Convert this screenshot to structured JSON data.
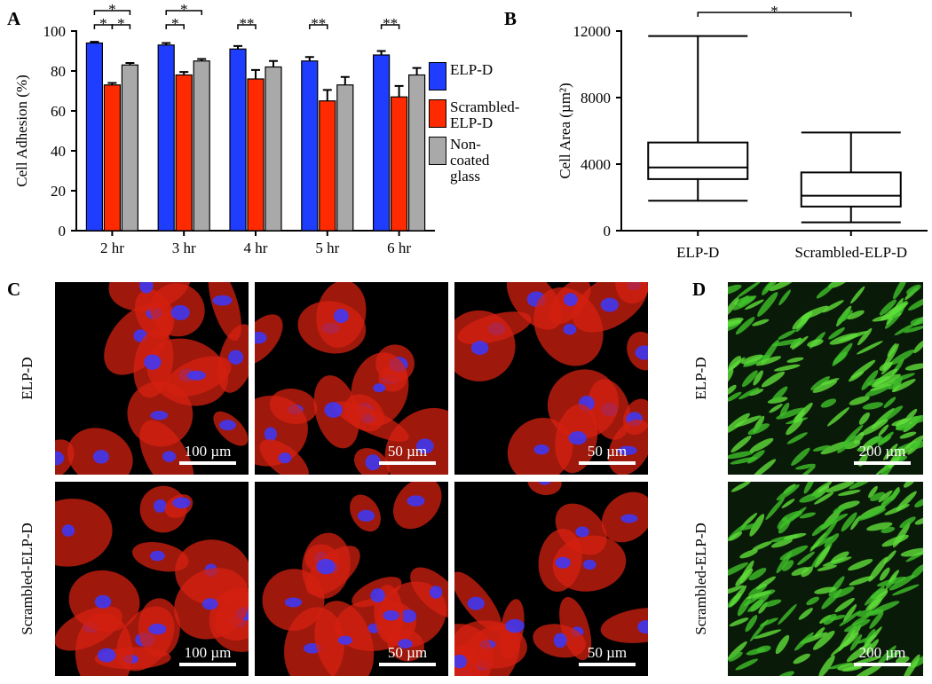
{
  "chart_data": [
    {
      "type": "bar",
      "panel_label": "A",
      "ylabel": "Cell Adhesion (%)",
      "categories": [
        "2 hr",
        "3 hr",
        "4 hr",
        "5 hr",
        "6 hr"
      ],
      "series": [
        {
          "name": "ELP-D",
          "color": "#1f3dff",
          "values": [
            94,
            93,
            91,
            85,
            88
          ],
          "errors": [
            0.6,
            1,
            1.5,
            2,
            2
          ]
        },
        {
          "name": "Scrambled-ELP-D",
          "color": "#ff2a00",
          "values": [
            73,
            78,
            76,
            65,
            67
          ],
          "errors": [
            1,
            1.5,
            4.5,
            5.5,
            5.5
          ]
        },
        {
          "name": "Non-coated glass",
          "color": "#a9a9a9",
          "values": [
            83,
            85,
            82,
            73,
            78
          ],
          "errors": [
            1,
            1,
            3,
            4,
            3.5
          ]
        }
      ],
      "ylim": [
        0,
        100
      ],
      "yticks": [
        0,
        20,
        40,
        60,
        80,
        100
      ],
      "legend": "right",
      "annotations": [
        {
          "text": "*",
          "category": 0,
          "series": [
            0,
            1
          ]
        },
        {
          "text": "*",
          "category": 0,
          "series": [
            1,
            2
          ]
        },
        {
          "text": "*",
          "category": 0,
          "series": [
            0,
            2
          ]
        },
        {
          "text": "*",
          "category": 1,
          "series": [
            0,
            1
          ]
        },
        {
          "text": "*",
          "category": 1,
          "series": [
            0,
            2
          ]
        },
        {
          "text": "**",
          "category": 2,
          "series": [
            0,
            1
          ]
        },
        {
          "text": "**",
          "category": 3,
          "series": [
            0,
            1
          ]
        },
        {
          "text": "**",
          "category": 4,
          "series": [
            0,
            1
          ]
        }
      ]
    },
    {
      "type": "box",
      "panel_label": "B",
      "ylabel": "Cell Area (µm²)",
      "categories": [
        "ELP-D",
        "Scrambled-ELP-D"
      ],
      "min": [
        1800,
        500
      ],
      "q1": [
        3100,
        1450
      ],
      "median": [
        3800,
        2100
      ],
      "q3": [
        5300,
        3500
      ],
      "max": [
        11700,
        5900
      ],
      "ylim": [
        0,
        12000
      ],
      "yticks": [
        0,
        4000,
        8000,
        12000
      ],
      "annotations": [
        {
          "text": "*",
          "categories": [
            0,
            1
          ]
        }
      ]
    }
  ],
  "micrographs": [
    {
      "panel_label": "C",
      "rows": [
        {
          "label": "ELP-D",
          "scale_bars": [
            "100 µm",
            "50 µm",
            "50 µm"
          ]
        },
        {
          "label": "Scrambled-ELP-D",
          "scale_bars": [
            "100 µm",
            "50 µm",
            "50 µm"
          ]
        }
      ]
    },
    {
      "panel_label": "D",
      "rows": [
        {
          "label": "ELP-D",
          "scale_bars": [
            "200 µm"
          ]
        },
        {
          "label": "Scrambled-ELP-D",
          "scale_bars": [
            "200 µm"
          ]
        }
      ]
    }
  ]
}
